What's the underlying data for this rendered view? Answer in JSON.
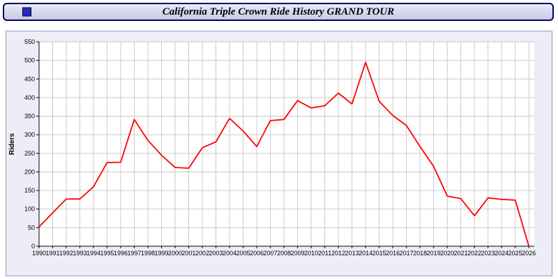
{
  "window": {
    "title": "California Triple Crown Ride History GRAND TOUR"
  },
  "colors": {
    "line": "#ff0000",
    "grid": "#c9c9c9",
    "axis": "#000000",
    "plot_background": "#ffffff",
    "panel_background": "#ededf7",
    "titlebar_background": "#d4d4ee",
    "titlebar_border": "#000066",
    "titlebar_icon": "#2a2ac0"
  },
  "chart_data": {
    "type": "line",
    "title": "California Triple Crown Ride History GRAND TOUR",
    "xlabel": "",
    "ylabel": "Riders",
    "ylim": [
      0,
      550
    ],
    "ytick_step": 50,
    "grid": true,
    "legend_position": "none",
    "line_color": "#ff0000",
    "grid_color": "#c9c9c9",
    "x": [
      1990,
      1991,
      1992,
      1993,
      1994,
      1995,
      1996,
      1997,
      1998,
      1999,
      2000,
      2001,
      2002,
      2003,
      2004,
      2005,
      2006,
      2007,
      2008,
      2009,
      2010,
      2011,
      2012,
      2013,
      2014,
      2015,
      2016,
      2017,
      2018,
      2019,
      2020,
      2021,
      2022,
      2023,
      2024,
      2025,
      2026
    ],
    "values": [
      52,
      90,
      127,
      127,
      160,
      225,
      226,
      341,
      285,
      245,
      212,
      210,
      265,
      281,
      344,
      310,
      268,
      338,
      341,
      392,
      372,
      378,
      412,
      383,
      495,
      390,
      352,
      325,
      268,
      215,
      135,
      128,
      82,
      130,
      126,
      124,
      0
    ]
  }
}
